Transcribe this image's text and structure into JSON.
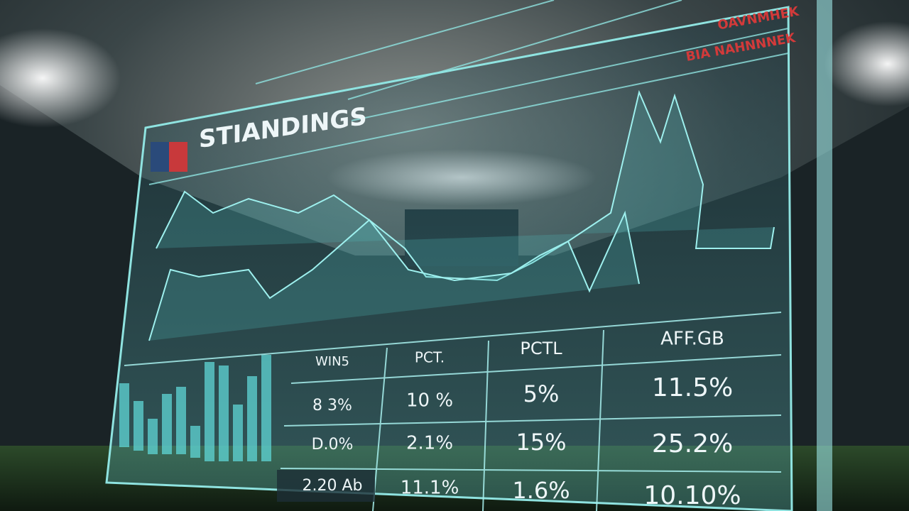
{
  "header": {
    "title": "STIANDINGS",
    "ticker": [
      "OAVNMHEK",
      "BIA NAHNNNEK"
    ]
  },
  "table": {
    "columns": [
      "WIN5",
      "PCT.",
      "PCTL",
      "AFF.GB"
    ],
    "rows": [
      [
        "8 3%",
        "10 %",
        "5%",
        "11.5%"
      ],
      [
        "D.0%",
        "2.1%",
        "15%",
        "25.2%"
      ],
      [
        "2.20 Ab",
        "11.1%",
        "1.6%",
        "10.10%"
      ]
    ]
  }
}
